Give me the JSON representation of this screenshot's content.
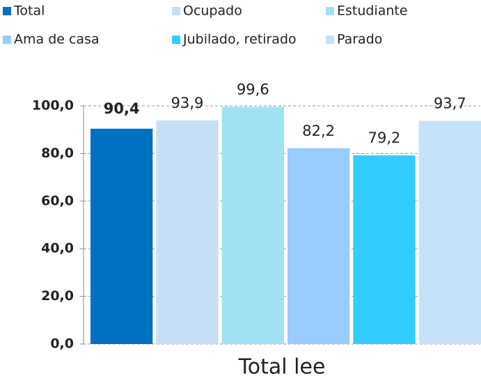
{
  "chart_data": {
    "type": "bar",
    "categories": [
      "Total lee"
    ],
    "series": [
      {
        "name": "Total",
        "color": "#0070c0",
        "values": [
          90.4
        ],
        "value_labels": [
          "90,4"
        ]
      },
      {
        "name": "Ocupado",
        "color": "#c6dff7",
        "values": [
          93.9
        ],
        "value_labels": [
          "93,9"
        ]
      },
      {
        "name": "Estudiante",
        "color": "#a0e2f2",
        "values": [
          99.6
        ],
        "value_labels": [
          "99,6"
        ]
      },
      {
        "name": "Ama de casa",
        "color": "#99ccff",
        "values": [
          82.2
        ],
        "value_labels": [
          "82,2"
        ]
      },
      {
        "name": "Jubilado, retirado",
        "color": "#33ccff",
        "values": [
          79.2
        ],
        "value_labels": [
          "79,2"
        ]
      },
      {
        "name": "Parado",
        "color": "#c6e2fb",
        "values": [
          93.7
        ],
        "value_labels": [
          "93,7"
        ]
      }
    ],
    "ylim": [
      0,
      100
    ],
    "yticks": [
      {
        "value": 0,
        "label": "0,0"
      },
      {
        "value": 20,
        "label": "20,0"
      },
      {
        "value": 40,
        "label": "40,0"
      },
      {
        "value": 60,
        "label": "60,0"
      },
      {
        "value": 80,
        "label": "80,0"
      },
      {
        "value": 100,
        "label": "100,0"
      }
    ],
    "grid": true
  }
}
